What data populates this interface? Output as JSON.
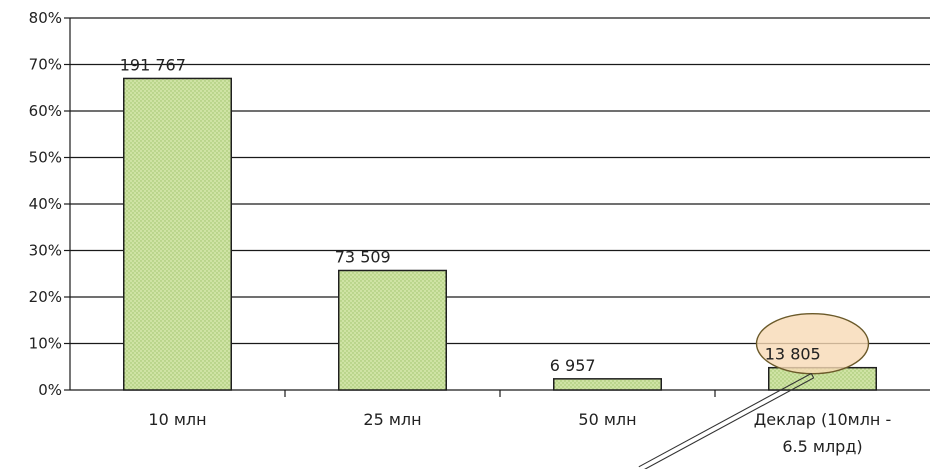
{
  "chart_data": {
    "type": "bar",
    "categories": [
      {
        "lines": [
          "10 млн"
        ]
      },
      {
        "lines": [
          "25 млн"
        ]
      },
      {
        "lines": [
          "50 млн"
        ]
      },
      {
        "lines": [
          "Деклар (10млн -",
          "6.5 млрд)"
        ]
      }
    ],
    "values": [
      67,
      25.7,
      2.4,
      4.8
    ],
    "data_labels": [
      "191 767",
      "73 509",
      "6 957",
      "13 805"
    ],
    "ylim": [
      0,
      80
    ],
    "y_ticks": [
      "0%",
      "10%",
      "20%",
      "30%",
      "40%",
      "50%",
      "60%",
      "70%",
      "80%"
    ],
    "grid": true,
    "legend": "none",
    "highlighted_index": 3
  },
  "colors": {
    "bar_fill": "#cfe3a4",
    "bar_pattern_dot": "#9dc26a",
    "bar_stroke": "#1f1f1f",
    "grid": "#1a1a1a",
    "highlight_fill": "#f8d9b5",
    "highlight_stroke": "#6b5a2a"
  }
}
